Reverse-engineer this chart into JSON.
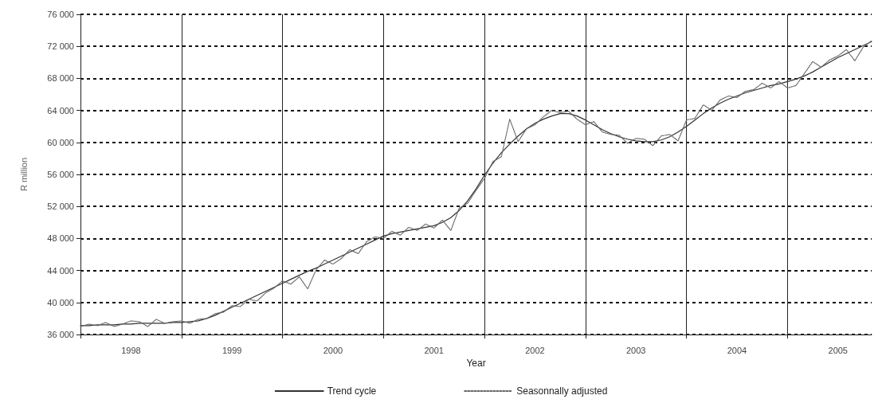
{
  "chart_data": {
    "type": "line",
    "xlabel": "Year",
    "ylabel": "R million",
    "categories": [
      null,
      null,
      null,
      null,
      null,
      null,
      "1998",
      null,
      null,
      null,
      null,
      null,
      null,
      null,
      null,
      null,
      null,
      null,
      "1999",
      null,
      null,
      null,
      null,
      null,
      null,
      null,
      null,
      null,
      null,
      null,
      "2000",
      null,
      null,
      null,
      null,
      null,
      null,
      null,
      null,
      null,
      null,
      null,
      "2001",
      null,
      null,
      null,
      null,
      null,
      null,
      null,
      null,
      null,
      null,
      null,
      "2002",
      null,
      null,
      null,
      null,
      null,
      null,
      null,
      null,
      null,
      null,
      null,
      "2003",
      null,
      null,
      null,
      null,
      null,
      null,
      null,
      null,
      null,
      null,
      null,
      "2004",
      null,
      null,
      null,
      null,
      null,
      null,
      null,
      null,
      null,
      null,
      null,
      "2005",
      null,
      null,
      null,
      null
    ],
    "series": [
      {
        "name": "Trend cycle",
        "color": "#333333",
        "line_style": "solid",
        "values": [
          37100,
          37100,
          37200,
          37200,
          37200,
          37300,
          37300,
          37400,
          37400,
          37400,
          37400,
          37500,
          37500,
          37600,
          37700,
          38000,
          38400,
          38900,
          39400,
          39900,
          40400,
          40900,
          41400,
          41900,
          42400,
          42900,
          43400,
          43900,
          44300,
          44800,
          45300,
          45800,
          46300,
          46800,
          47300,
          47800,
          48300,
          48600,
          48800,
          49000,
          49200,
          49400,
          49600,
          50000,
          50600,
          51500,
          52700,
          54200,
          55900,
          57400,
          58700,
          59800,
          60800,
          61700,
          62400,
          62900,
          63300,
          63600,
          63600,
          63300,
          62800,
          62200,
          61600,
          61100,
          60700,
          60400,
          60200,
          60100,
          60100,
          60300,
          60700,
          61300,
          62000,
          62800,
          63600,
          64300,
          64900,
          65400,
          65800,
          66200,
          66500,
          66800,
          67100,
          67300,
          67600,
          67900,
          68300,
          68800,
          69400,
          70000,
          70600,
          71100,
          71600,
          72100,
          72600
        ]
      },
      {
        "name": "Seasonnally adjusted",
        "color": "#666666",
        "line_style": "dotted",
        "values": [
          37000,
          37300,
          37100,
          37500,
          37000,
          37300,
          37700,
          37600,
          37000,
          37900,
          37400,
          37600,
          37700,
          37400,
          37900,
          38000,
          38600,
          38800,
          39600,
          39500,
          40400,
          40200,
          41200,
          41800,
          42700,
          42300,
          43200,
          41700,
          44100,
          45300,
          44800,
          45500,
          46600,
          46100,
          47600,
          48200,
          48000,
          48900,
          48400,
          49400,
          49000,
          49800,
          49300,
          50300,
          49000,
          51800,
          52400,
          54000,
          55500,
          57600,
          58200,
          62900,
          60100,
          61700,
          62200,
          63200,
          64000,
          63700,
          63900,
          62900,
          62200,
          62600,
          61300,
          61000,
          60900,
          59900,
          60500,
          60400,
          59600,
          60800,
          61000,
          60200,
          62800,
          63000,
          64700,
          64000,
          65300,
          65800,
          65600,
          66400,
          66600,
          67400,
          66800,
          67600,
          66800,
          67100,
          68600,
          70100,
          69400,
          70300,
          70800,
          71600,
          70200,
          71900,
          72700
        ]
      }
    ],
    "ylim": [
      36000,
      76000
    ],
    "yticks": [
      {
        "value": 36000,
        "label": "36 000"
      },
      {
        "value": 40000,
        "label": "40 000"
      },
      {
        "value": 44000,
        "label": "44 000"
      },
      {
        "value": 48000,
        "label": "48 000"
      },
      {
        "value": 52000,
        "label": "52 000"
      },
      {
        "value": 56000,
        "label": "56 000"
      },
      {
        "value": 60000,
        "label": "60 000"
      },
      {
        "value": 64000,
        "label": "64 000"
      },
      {
        "value": 68000,
        "label": "68 000"
      },
      {
        "value": 72000,
        "label": "72 000"
      },
      {
        "value": 76000,
        "label": "76 000"
      }
    ],
    "grid": true,
    "legend": "bottom",
    "marker": "none"
  }
}
